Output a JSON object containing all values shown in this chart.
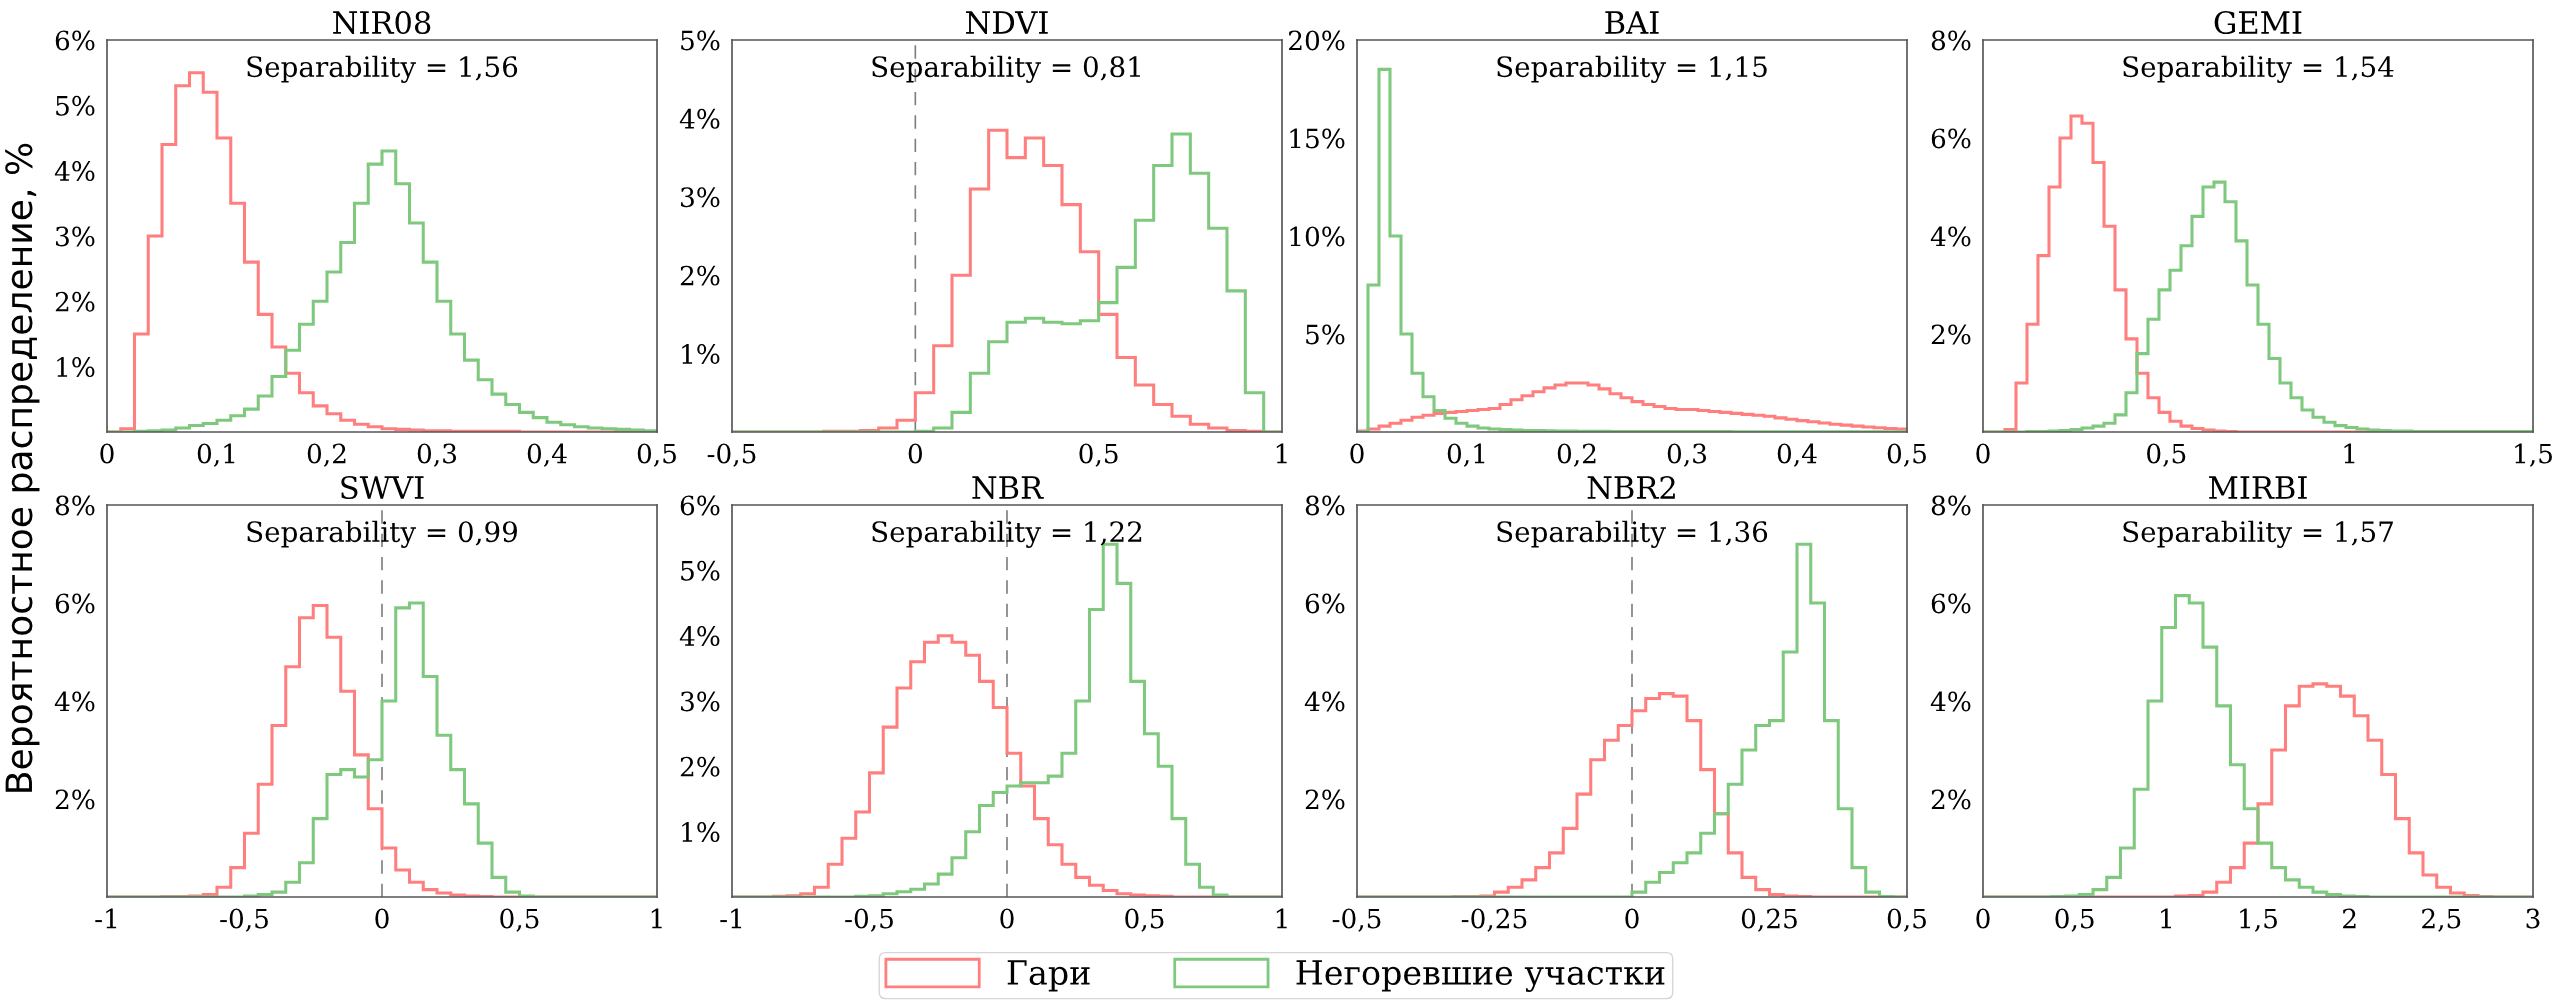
{
  "chart_data": [
    {
      "type": "histogram",
      "title": "NIR08",
      "ylabel": "Вероятностное распределение, %",
      "annotations": [
        "Separability = 1,56"
      ],
      "legend": "bottom",
      "bins": [
        0,
        0.0125,
        0.025,
        0.0375,
        0.05,
        0.0625,
        0.075,
        0.0875,
        0.1,
        0.1125,
        0.125,
        0.1375,
        0.15,
        0.1625,
        0.175,
        0.1875,
        0.2,
        0.2125,
        0.225,
        0.2375,
        0.25,
        0.2625,
        0.275,
        0.2875,
        0.3,
        0.3125,
        0.325,
        0.3375,
        0.35,
        0.3625,
        0.375,
        0.3875,
        0.4,
        0.4125,
        0.425,
        0.4375,
        0.45,
        0.4625,
        0.475,
        0.4875,
        0.5
      ],
      "series": [
        {
          "name": "Гари",
          "color": "#ff7f7f",
          "values": [
            0,
            0.05,
            1.5,
            3.0,
            4.4,
            5.3,
            5.5,
            5.2,
            4.5,
            3.5,
            2.6,
            1.8,
            1.3,
            0.9,
            0.6,
            0.4,
            0.28,
            0.18,
            0.12,
            0.08,
            0.05,
            0.04,
            0.03,
            0.02,
            0.02,
            0.01,
            0.01,
            0.01,
            0.01,
            0.01,
            0,
            0,
            0,
            0,
            0,
            0,
            0,
            0,
            0,
            0
          ]
        },
        {
          "name": "Негоревшие участки",
          "color": "#7fc97f",
          "values": [
            0,
            0,
            0.01,
            0.02,
            0.03,
            0.06,
            0.1,
            0.13,
            0.18,
            0.25,
            0.35,
            0.55,
            0.85,
            1.25,
            1.65,
            2.0,
            2.45,
            2.9,
            3.5,
            4.1,
            4.3,
            3.8,
            3.2,
            2.6,
            2.0,
            1.5,
            1.1,
            0.8,
            0.58,
            0.42,
            0.3,
            0.22,
            0.15,
            0.11,
            0.08,
            0.06,
            0.05,
            0.04,
            0.03,
            0.02
          ]
        }
      ],
      "xlim": [
        0,
        0.5
      ],
      "xticks": [
        0,
        {
          "value": 0.1,
          "label": "0,1"
        },
        {
          "value": 0.2,
          "label": "0,2"
        },
        {
          "value": 0.3,
          "label": "0,3"
        },
        {
          "value": 0.4,
          "label": "0,4"
        },
        {
          "value": 0.5,
          "label": "0,5"
        }
      ],
      "ylim": [
        0,
        6
      ],
      "yticks": [
        {
          "value": 1,
          "label": "1%"
        },
        {
          "value": 2,
          "label": "2%"
        },
        {
          "value": 3,
          "label": "3%"
        },
        {
          "value": 4,
          "label": "4%"
        },
        {
          "value": 5,
          "label": "5%"
        },
        {
          "value": 6,
          "label": "6%"
        }
      ]
    },
    {
      "type": "histogram",
      "title": "NDVI",
      "annotations": [
        "Separability = 0,81"
      ],
      "bins": [
        -0.5,
        -0.45,
        -0.4,
        -0.35,
        -0.3,
        -0.25,
        -0.2,
        -0.15,
        -0.1,
        -0.05,
        0,
        0.05,
        0.1,
        0.15,
        0.2,
        0.25,
        0.3,
        0.35,
        0.4,
        0.45,
        0.5,
        0.55,
        0.6,
        0.65,
        0.7,
        0.75,
        0.8,
        0.85,
        0.9,
        0.95,
        1.0
      ],
      "series": [
        {
          "color": "#ff7f7f",
          "values": [
            0,
            0,
            0,
            0,
            0,
            0.01,
            0.01,
            0.02,
            0.05,
            0.15,
            0.5,
            1.1,
            2.0,
            3.1,
            3.85,
            3.5,
            3.75,
            3.4,
            2.9,
            2.3,
            1.5,
            0.95,
            0.6,
            0.35,
            0.2,
            0.1,
            0.05,
            0.02,
            0.01,
            0
          ]
        },
        {
          "color": "#7fc97f",
          "values": [
            0,
            0,
            0,
            0,
            0,
            0,
            0,
            0,
            0,
            0,
            0.01,
            0.05,
            0.25,
            0.75,
            1.15,
            1.4,
            1.45,
            1.4,
            1.38,
            1.42,
            1.65,
            2.1,
            2.7,
            3.4,
            3.8,
            3.3,
            2.6,
            1.8,
            0.5,
            0
          ]
        }
      ],
      "ref_lines": [
        {
          "axis": "x",
          "value": 0,
          "color": "#808080",
          "line_style": "dashed"
        }
      ],
      "xlim": [
        -0.5,
        1
      ],
      "xticks": [
        {
          "value": -0.5,
          "label": "-0,5"
        },
        0,
        {
          "value": 0.5,
          "label": "0,5"
        },
        1
      ],
      "ylim": [
        0,
        5
      ],
      "yticks": [
        {
          "value": 1,
          "label": "1%"
        },
        {
          "value": 2,
          "label": "2%"
        },
        {
          "value": 3,
          "label": "3%"
        },
        {
          "value": 4,
          "label": "4%"
        },
        {
          "value": 5,
          "label": "5%"
        }
      ]
    },
    {
      "type": "histogram",
      "title": "BAI",
      "annotations": [
        "Separability = 1,15"
      ],
      "bins": [
        0,
        0.01,
        0.02,
        0.03,
        0.04,
        0.05,
        0.06,
        0.07,
        0.08,
        0.09,
        0.1,
        0.11,
        0.12,
        0.13,
        0.14,
        0.15,
        0.16,
        0.17,
        0.18,
        0.19,
        0.2,
        0.21,
        0.22,
        0.23,
        0.24,
        0.25,
        0.26,
        0.27,
        0.28,
        0.29,
        0.3,
        0.31,
        0.32,
        0.33,
        0.34,
        0.35,
        0.36,
        0.37,
        0.38,
        0.39,
        0.4,
        0.41,
        0.42,
        0.43,
        0.44,
        0.45,
        0.46,
        0.47,
        0.48,
        0.49,
        0.5
      ],
      "series": [
        {
          "color": "#ff7f7f",
          "values": [
            0.05,
            0.15,
            0.3,
            0.45,
            0.6,
            0.75,
            0.85,
            0.95,
            1.0,
            1.05,
            1.1,
            1.15,
            1.2,
            1.4,
            1.65,
            1.85,
            2.05,
            2.25,
            2.4,
            2.5,
            2.5,
            2.4,
            2.2,
            1.95,
            1.75,
            1.55,
            1.4,
            1.3,
            1.2,
            1.15,
            1.15,
            1.1,
            1.05,
            1.0,
            0.95,
            0.9,
            0.85,
            0.8,
            0.72,
            0.65,
            0.58,
            0.52,
            0.46,
            0.4,
            0.35,
            0.3,
            0.26,
            0.22,
            0.18,
            0.15
          ]
        },
        {
          "color": "#7fc97f",
          "values": [
            0,
            7.5,
            18.5,
            10,
            5.0,
            3.0,
            1.8,
            1.1,
            0.7,
            0.45,
            0.3,
            0.2,
            0.15,
            0.12,
            0.1,
            0.08,
            0.07,
            0.06,
            0.05,
            0.05,
            0.04,
            0.04,
            0.04,
            0.03,
            0.03,
            0.03,
            0.03,
            0.02,
            0.02,
            0.02,
            0.02,
            0.02,
            0.02,
            0.02,
            0.01,
            0.01,
            0.01,
            0.01,
            0.01,
            0.01,
            0.01,
            0.01,
            0.01,
            0.01,
            0.01,
            0.01,
            0.01,
            0.01,
            0.01,
            0.01
          ]
        }
      ],
      "xlim": [
        0,
        0.5
      ],
      "xticks": [
        0,
        {
          "value": 0.1,
          "label": "0,1"
        },
        {
          "value": 0.2,
          "label": "0,2"
        },
        {
          "value": 0.3,
          "label": "0,3"
        },
        {
          "value": 0.4,
          "label": "0,4"
        },
        {
          "value": 0.5,
          "label": "0,5"
        }
      ],
      "ylim": [
        0,
        20
      ],
      "yticks": [
        {
          "value": 5,
          "label": "5%"
        },
        {
          "value": 10,
          "label": "10%"
        },
        {
          "value": 15,
          "label": "15%"
        },
        {
          "value": 20,
          "label": "20%"
        }
      ]
    },
    {
      "type": "histogram",
      "title": "GEMI",
      "annotations": [
        "Separability = 1,54"
      ],
      "bins": [
        0,
        0.03,
        0.06,
        0.09,
        0.12,
        0.15,
        0.18,
        0.21,
        0.24,
        0.27,
        0.3,
        0.33,
        0.36,
        0.39,
        0.42,
        0.45,
        0.48,
        0.51,
        0.54,
        0.57,
        0.6,
        0.63,
        0.66,
        0.69,
        0.72,
        0.75,
        0.78,
        0.81,
        0.84,
        0.87,
        0.9,
        0.93,
        0.96,
        0.99,
        1.02,
        1.05,
        1.08,
        1.11,
        1.14,
        1.17,
        1.2,
        1.23,
        1.26,
        1.29,
        1.32,
        1.35,
        1.38,
        1.41,
        1.44,
        1.47,
        1.5
      ],
      "series": [
        {
          "color": "#ff7f7f",
          "values": [
            0,
            0,
            0.05,
            1.0,
            2.2,
            3.6,
            5.0,
            6.0,
            6.45,
            6.3,
            5.5,
            4.2,
            2.9,
            1.9,
            1.2,
            0.7,
            0.4,
            0.22,
            0.12,
            0.07,
            0.04,
            0.02,
            0.01,
            0,
            0,
            0,
            0,
            0,
            0,
            0,
            0,
            0,
            0,
            0,
            0,
            0,
            0,
            0,
            0,
            0,
            0,
            0,
            0,
            0,
            0,
            0,
            0,
            0,
            0,
            0
          ]
        },
        {
          "color": "#7fc97f",
          "values": [
            0,
            0,
            0,
            0,
            0.01,
            0.01,
            0.02,
            0.03,
            0.05,
            0.08,
            0.12,
            0.18,
            0.35,
            0.8,
            1.6,
            2.3,
            2.9,
            3.3,
            3.8,
            4.4,
            5.0,
            5.1,
            4.7,
            3.9,
            3.0,
            2.2,
            1.5,
            1.0,
            0.7,
            0.45,
            0.3,
            0.2,
            0.13,
            0.09,
            0.06,
            0.04,
            0.03,
            0.02,
            0.02,
            0.01,
            0.01,
            0.01,
            0.01,
            0.01,
            0.01,
            0.01,
            0.01,
            0.01,
            0.01,
            0.01
          ]
        }
      ],
      "xlim": [
        0,
        1.5
      ],
      "xticks": [
        0,
        {
          "value": 0.5,
          "label": "0,5"
        },
        1,
        {
          "value": 1.5,
          "label": "1,5"
        }
      ],
      "ylim": [
        0,
        8
      ],
      "yticks": [
        {
          "value": 2,
          "label": "2%"
        },
        {
          "value": 4,
          "label": "4%"
        },
        {
          "value": 6,
          "label": "6%"
        },
        {
          "value": 8,
          "label": "8%"
        }
      ]
    },
    {
      "type": "histogram",
      "title": "SWVI",
      "annotations": [
        "Separability = 0,99"
      ],
      "bins": [
        -1,
        -0.95,
        -0.9,
        -0.85,
        -0.8,
        -0.75,
        -0.7,
        -0.65,
        -0.6,
        -0.55,
        -0.5,
        -0.45,
        -0.4,
        -0.35,
        -0.3,
        -0.25,
        -0.2,
        -0.15,
        -0.1,
        -0.05,
        0,
        0.05,
        0.1,
        0.15,
        0.2,
        0.25,
        0.3,
        0.35,
        0.4,
        0.45,
        0.5,
        0.55,
        0.6,
        0.65,
        0.7,
        0.75,
        0.8,
        0.85,
        0.9,
        0.95,
        1
      ],
      "series": [
        {
          "color": "#ff7f7f",
          "values": [
            0,
            0,
            0,
            0,
            0.01,
            0.01,
            0.02,
            0.05,
            0.2,
            0.6,
            1.3,
            2.3,
            3.5,
            4.7,
            5.7,
            5.95,
            5.3,
            4.2,
            2.9,
            1.8,
            1.0,
            0.55,
            0.3,
            0.15,
            0.08,
            0.04,
            0.02,
            0.01,
            0,
            0,
            0,
            0,
            0,
            0,
            0,
            0,
            0,
            0,
            0,
            0
          ]
        },
        {
          "color": "#7fc97f",
          "values": [
            0,
            0,
            0,
            0,
            0,
            0,
            0,
            0,
            0,
            0,
            0.02,
            0.05,
            0.1,
            0.3,
            0.7,
            1.6,
            2.5,
            2.6,
            2.45,
            2.8,
            4.0,
            5.9,
            6.0,
            4.5,
            3.3,
            2.6,
            1.9,
            1.1,
            0.4,
            0.1,
            0.02,
            0,
            0,
            0,
            0,
            0,
            0,
            0,
            0,
            0
          ]
        }
      ],
      "ref_lines": [
        {
          "axis": "x",
          "value": 0,
          "color": "#808080",
          "line_style": "dashed"
        }
      ],
      "xlim": [
        -1,
        1
      ],
      "xticks": [
        -1,
        {
          "value": -0.5,
          "label": "-0,5"
        },
        0,
        {
          "value": 0.5,
          "label": "0,5"
        },
        1
      ],
      "ylim": [
        0,
        8
      ],
      "yticks": [
        {
          "value": 2,
          "label": "2%"
        },
        {
          "value": 4,
          "label": "4%"
        },
        {
          "value": 6,
          "label": "6%"
        },
        {
          "value": 8,
          "label": "8%"
        }
      ]
    },
    {
      "type": "histogram",
      "title": "NBR",
      "annotations": [
        "Separability = 1,22"
      ],
      "bins": [
        -1,
        -0.95,
        -0.9,
        -0.85,
        -0.8,
        -0.75,
        -0.7,
        -0.65,
        -0.6,
        -0.55,
        -0.5,
        -0.45,
        -0.4,
        -0.35,
        -0.3,
        -0.25,
        -0.2,
        -0.15,
        -0.1,
        -0.05,
        0,
        0.05,
        0.1,
        0.15,
        0.2,
        0.25,
        0.3,
        0.35,
        0.4,
        0.45,
        0.5,
        0.55,
        0.6,
        0.65,
        0.7,
        0.75,
        0.8,
        0.85,
        0.9,
        0.95,
        1
      ],
      "series": [
        {
          "color": "#ff7f7f",
          "values": [
            0,
            0,
            0,
            0.01,
            0.02,
            0.05,
            0.15,
            0.5,
            0.9,
            1.3,
            1.9,
            2.6,
            3.2,
            3.6,
            3.9,
            4.0,
            3.9,
            3.7,
            3.3,
            2.9,
            2.2,
            1.7,
            1.2,
            0.8,
            0.5,
            0.3,
            0.18,
            0.1,
            0.05,
            0.03,
            0.02,
            0.01,
            0,
            0,
            0,
            0,
            0,
            0,
            0,
            0
          ]
        },
        {
          "color": "#7fc97f",
          "values": [
            0,
            0,
            0,
            0,
            0,
            0,
            0,
            0,
            0,
            0.01,
            0.02,
            0.05,
            0.08,
            0.12,
            0.2,
            0.35,
            0.6,
            1.0,
            1.4,
            1.6,
            1.7,
            1.75,
            1.75,
            1.85,
            2.2,
            3.0,
            4.4,
            5.4,
            4.8,
            3.3,
            2.5,
            2.0,
            1.2,
            0.5,
            0.15,
            0.03,
            0,
            0,
            0,
            0
          ]
        }
      ],
      "ref_lines": [
        {
          "axis": "x",
          "value": 0,
          "color": "#808080",
          "line_style": "dashed"
        }
      ],
      "xlim": [
        -1,
        1
      ],
      "xticks": [
        -1,
        {
          "value": -0.5,
          "label": "-0,5"
        },
        0,
        {
          "value": 0.5,
          "label": "0,5"
        },
        1
      ],
      "ylim": [
        0,
        6
      ],
      "yticks": [
        {
          "value": 1,
          "label": "1%"
        },
        {
          "value": 2,
          "label": "2%"
        },
        {
          "value": 3,
          "label": "3%"
        },
        {
          "value": 4,
          "label": "4%"
        },
        {
          "value": 5,
          "label": "5%"
        },
        {
          "value": 6,
          "label": "6%"
        }
      ]
    },
    {
      "type": "histogram",
      "title": "NBR2",
      "annotations": [
        "Separability = 1,36"
      ],
      "bins": [
        -0.5,
        -0.475,
        -0.45,
        -0.425,
        -0.4,
        -0.375,
        -0.35,
        -0.325,
        -0.3,
        -0.275,
        -0.25,
        -0.225,
        -0.2,
        -0.175,
        -0.15,
        -0.125,
        -0.1,
        -0.075,
        -0.05,
        -0.025,
        0,
        0.025,
        0.05,
        0.075,
        0.1,
        0.125,
        0.15,
        0.175,
        0.2,
        0.225,
        0.25,
        0.275,
        0.3,
        0.325,
        0.35,
        0.375,
        0.4,
        0.425,
        0.45,
        0.475,
        0.5
      ],
      "series": [
        {
          "color": "#ff7f7f",
          "values": [
            0,
            0,
            0,
            0,
            0,
            0,
            0,
            0.01,
            0.01,
            0.02,
            0.1,
            0.2,
            0.35,
            0.6,
            0.9,
            1.4,
            2.1,
            2.8,
            3.2,
            3.5,
            3.8,
            4.05,
            4.15,
            4.1,
            3.6,
            2.6,
            1.7,
            0.9,
            0.4,
            0.15,
            0.05,
            0.02,
            0.01,
            0,
            0,
            0,
            0,
            0,
            0,
            0
          ]
        },
        {
          "color": "#7fc97f",
          "values": [
            0,
            0,
            0,
            0,
            0,
            0,
            0,
            0,
            0,
            0,
            0,
            0,
            0,
            0,
            0,
            0,
            0,
            0,
            0,
            0,
            0.1,
            0.3,
            0.5,
            0.7,
            0.9,
            1.3,
            1.7,
            2.3,
            3.0,
            3.5,
            3.6,
            5.0,
            7.2,
            6.0,
            3.6,
            1.8,
            0.6,
            0.1,
            0.01,
            0
          ]
        }
      ],
      "ref_lines": [
        {
          "axis": "x",
          "value": 0,
          "color": "#808080",
          "line_style": "dashed"
        }
      ],
      "xlim": [
        -0.5,
        0.5
      ],
      "xticks": [
        {
          "value": -0.5,
          "label": "-0,5"
        },
        {
          "value": -0.25,
          "label": "-0,25"
        },
        0,
        {
          "value": 0.25,
          "label": "0,25"
        },
        {
          "value": 0.5,
          "label": "0,5"
        }
      ],
      "ylim": [
        0,
        8
      ],
      "yticks": [
        {
          "value": 2,
          "label": "2%"
        },
        {
          "value": 4,
          "label": "4%"
        },
        {
          "value": 6,
          "label": "6%"
        },
        {
          "value": 8,
          "label": "8%"
        }
      ]
    },
    {
      "type": "histogram",
      "title": "MIRBI",
      "annotations": [
        "Separability = 1,57"
      ],
      "bins": [
        0,
        0.075,
        0.15,
        0.225,
        0.3,
        0.375,
        0.45,
        0.525,
        0.6,
        0.675,
        0.75,
        0.825,
        0.9,
        0.975,
        1.05,
        1.125,
        1.2,
        1.275,
        1.35,
        1.425,
        1.5,
        1.575,
        1.65,
        1.725,
        1.8,
        1.875,
        1.95,
        2.025,
        2.1,
        2.175,
        2.25,
        2.325,
        2.4,
        2.475,
        2.55,
        2.625,
        2.7,
        2.775,
        2.85,
        2.925,
        3
      ],
      "series": [
        {
          "color": "#ff7f7f",
          "values": [
            0,
            0,
            0,
            0,
            0,
            0,
            0,
            0,
            0,
            0,
            0,
            0,
            0,
            0,
            0.02,
            0.03,
            0.1,
            0.3,
            0.6,
            1.1,
            1.9,
            3.0,
            3.9,
            4.3,
            4.35,
            4.3,
            4.1,
            3.7,
            3.2,
            2.5,
            1.6,
            0.9,
            0.45,
            0.2,
            0.08,
            0.03,
            0.01,
            0,
            0,
            0
          ]
        },
        {
          "color": "#7fc97f",
          "values": [
            0,
            0,
            0,
            0,
            0,
            0.01,
            0.02,
            0.05,
            0.15,
            0.4,
            1.0,
            2.2,
            4.0,
            5.5,
            6.15,
            6.0,
            5.1,
            3.9,
            2.7,
            1.8,
            1.1,
            0.6,
            0.35,
            0.2,
            0.1,
            0.05,
            0.02,
            0.01,
            0,
            0,
            0,
            0,
            0,
            0,
            0,
            0,
            0,
            0,
            0,
            0
          ]
        }
      ],
      "xlim": [
        0,
        3
      ],
      "xticks": [
        0,
        {
          "value": 0.5,
          "label": "0,5"
        },
        1,
        {
          "value": 1.5,
          "label": "1,5"
        },
        2,
        {
          "value": 2.5,
          "label": "2,5"
        },
        3
      ],
      "ylim": [
        0,
        8
      ],
      "yticks": [
        {
          "value": 2,
          "label": "2%"
        },
        {
          "value": 4,
          "label": "4%"
        },
        {
          "value": 6,
          "label": "6%"
        },
        {
          "value": 8,
          "label": "8%"
        }
      ]
    }
  ]
}
